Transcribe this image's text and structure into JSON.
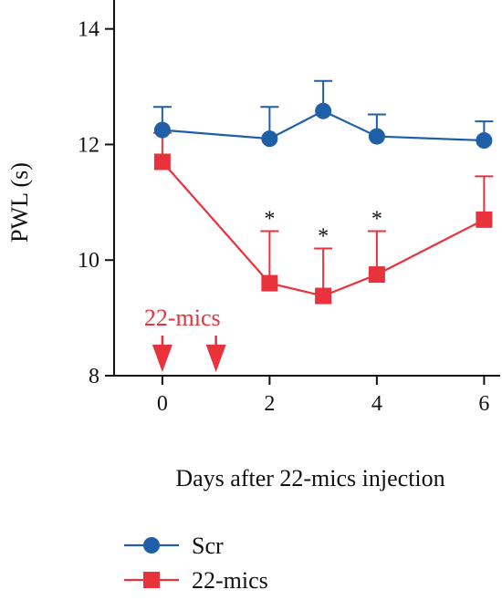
{
  "colors": {
    "scr": "#1f5fa8",
    "mics": "#e8323c",
    "axis": "#111111"
  },
  "chart_data": {
    "type": "line",
    "xlabel": "Days after 22-mics injection",
    "ylabel": "PWL (s)",
    "xlim": [
      -0.9,
      6.3
    ],
    "ylim": [
      8,
      14.5
    ],
    "xticks": [
      "0",
      "2",
      "4",
      "6"
    ],
    "xtick_values": [
      0,
      2,
      4,
      6
    ],
    "yticks": [
      "8",
      "10",
      "12",
      "14"
    ],
    "ytick_values": [
      8,
      10,
      12,
      14
    ],
    "grid": false,
    "legend_position": "bottom-left",
    "series": [
      {
        "name": "Scr",
        "marker": "circle",
        "color": "#1f5fa8",
        "x": [
          0,
          2,
          3,
          4,
          6
        ],
        "y": [
          12.25,
          12.1,
          12.58,
          12.14,
          12.07
        ],
        "error_upper": [
          0.4,
          0.55,
          0.52,
          0.38,
          0.33
        ]
      },
      {
        "name": "22-mics",
        "marker": "square",
        "color": "#e8323c",
        "x": [
          0,
          2,
          3,
          4,
          6
        ],
        "y": [
          11.7,
          9.6,
          9.38,
          9.75,
          10.7
        ],
        "error_upper": [
          0.5,
          0.9,
          0.82,
          0.75,
          0.75
        ]
      }
    ],
    "significance": [
      {
        "x": 2,
        "label": "*"
      },
      {
        "x": 3,
        "label": "*"
      },
      {
        "x": 4,
        "label": "*"
      }
    ],
    "annotation": {
      "label": "22-mics",
      "arrows_x": [
        0,
        1
      ]
    }
  }
}
